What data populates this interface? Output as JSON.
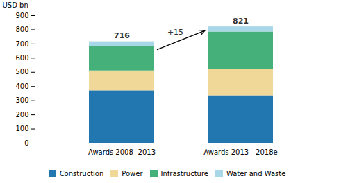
{
  "chart_data": {
    "type": "bar",
    "stacked": true,
    "categories": [
      "Awards 2008- 2013",
      "Awards 2013 - 2018e"
    ],
    "series": [
      {
        "name": "Construction",
        "color": "#2277b0",
        "values": [
          370,
          335
        ]
      },
      {
        "name": "Power",
        "color": "#f0d898",
        "values": [
          140,
          185
        ]
      },
      {
        "name": "Infrastructure",
        "color": "#45b07a",
        "values": [
          170,
          265
        ]
      },
      {
        "name": "Water and Waste",
        "color": "#a8d8e8",
        "values": [
          36,
          36
        ]
      }
    ],
    "totals": [
      716,
      821
    ],
    "annotations": [
      "+15"
    ],
    "ylabel": "USD bn",
    "ylim": [
      0,
      900
    ],
    "yticks": [
      0,
      100,
      200,
      300,
      400,
      500,
      600,
      700,
      800,
      900
    ],
    "grid": false,
    "legend": "bottom"
  }
}
